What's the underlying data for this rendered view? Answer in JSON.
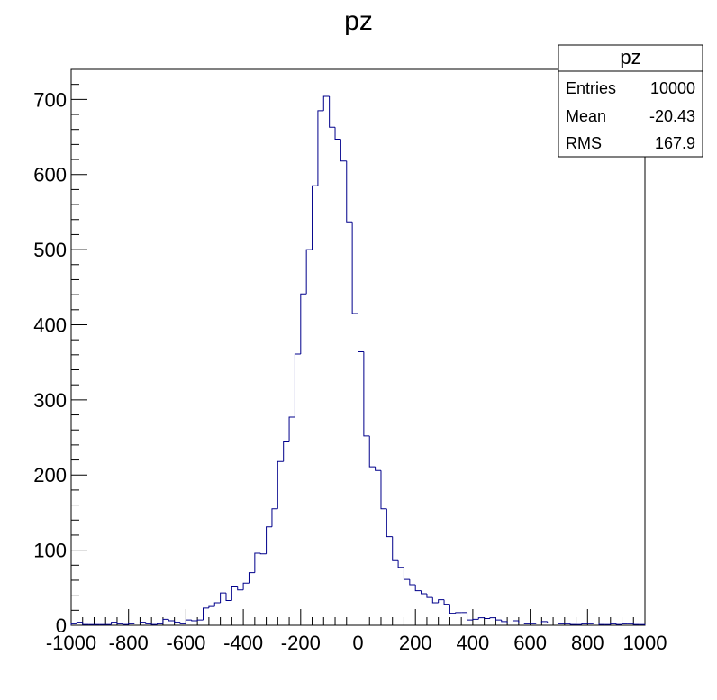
{
  "chart_data": {
    "type": "bar",
    "title": "pz",
    "xlabel": "",
    "ylabel": "",
    "xlim": [
      -1000,
      1000
    ],
    "ylim": [
      0,
      740
    ],
    "x_ticks": [
      "-1000",
      "-800",
      "-600",
      "-400",
      "-200",
      "0",
      "200",
      "400",
      "600",
      "800",
      "1000"
    ],
    "y_ticks": [
      "0",
      "100",
      "200",
      "300",
      "400",
      "500",
      "600",
      "700"
    ],
    "grid": false,
    "line_color": "#00008b",
    "bin_edges_start": -1000,
    "bin_width": 20,
    "series": [
      {
        "values": [
          2,
          4,
          1,
          1,
          1,
          1,
          1,
          4,
          2,
          1,
          2,
          3,
          4,
          2,
          1,
          2,
          8,
          6,
          4,
          2,
          7,
          6,
          7,
          23,
          25,
          30,
          43,
          33,
          51,
          47,
          56,
          70,
          96,
          95,
          131,
          155,
          218,
          244,
          277,
          361,
          441,
          500,
          585,
          685,
          704,
          663,
          647,
          618,
          537,
          415,
          364,
          252,
          211,
          206,
          155,
          118,
          86,
          77,
          61,
          54,
          46,
          42,
          37,
          30,
          34,
          28,
          16,
          17,
          17,
          7,
          8,
          10,
          9,
          10,
          7,
          5,
          3,
          6,
          3,
          2,
          2,
          3,
          5,
          3,
          3,
          2,
          2,
          1,
          1,
          2,
          2,
          3,
          1,
          1,
          2,
          1,
          2,
          2,
          1,
          1
        ]
      }
    ],
    "stats_box": {
      "title": "pz",
      "rows": [
        {
          "label": "Entries",
          "value": "10000"
        },
        {
          "label": "Mean",
          "value": "-20.43"
        },
        {
          "label": "RMS",
          "value": "167.9"
        }
      ]
    }
  }
}
